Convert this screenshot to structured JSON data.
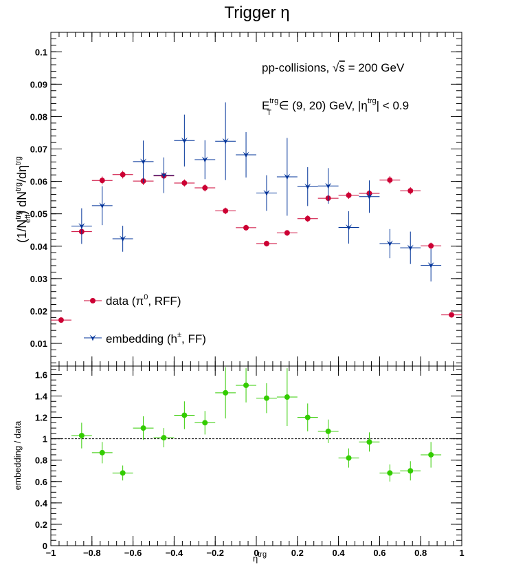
{
  "chart_data": [
    {
      "type": "scatter",
      "title": "Trigger η",
      "ylabel": "(1/N_eff^trg) dN^trg/dη^trg",
      "ylim": [
        0.003,
        0.106
      ],
      "xlim": [
        -1,
        1
      ],
      "xbin_halfwidth": 0.05,
      "y_ticks": [
        0.01,
        0.02,
        0.03,
        0.04,
        0.05,
        0.06,
        0.07,
        0.08,
        0.09,
        0.1
      ],
      "y_tick_labels": [
        "0.01",
        "0.02",
        "0.03",
        "0.04",
        "0.05",
        "0.06",
        "0.07",
        "0.08",
        "0.09",
        "0.1"
      ],
      "annotations": {
        "line1": "pp-collisions, √s = 200 GeV",
        "line2": "E_T^trg ∈ (9, 20) GeV, |η^trg| < 0.9"
      },
      "legend_position": "bottom-left",
      "series": [
        {
          "name": "data (π⁰, RFF)",
          "color": "#cc0033",
          "marker": "circle",
          "x": [
            -0.95,
            -0.85,
            -0.75,
            -0.65,
            -0.55,
            -0.45,
            -0.35,
            -0.25,
            -0.15,
            -0.05,
            0.05,
            0.15,
            0.25,
            0.35,
            0.45,
            0.55,
            0.65,
            0.75,
            0.85,
            0.95
          ],
          "y": [
            0.0172,
            0.0445,
            0.0603,
            0.0621,
            0.0601,
            0.0617,
            0.0595,
            0.058,
            0.0509,
            0.0457,
            0.0408,
            0.0441,
            0.0485,
            0.0548,
            0.0557,
            0.0563,
            0.0604,
            0.0571,
            0.0401,
            0.0188
          ],
          "yerr": [
            0.0008,
            0.001,
            0.0012,
            0.0012,
            0.0012,
            0.0012,
            0.0011,
            0.0011,
            0.001,
            0.0009,
            0.0009,
            0.0009,
            0.001,
            0.0011,
            0.0011,
            0.0011,
            0.0012,
            0.0011,
            0.001,
            0.0008
          ]
        },
        {
          "name": "embedding (h±, FF)",
          "color": "#003399",
          "marker": "star",
          "x": [
            -0.85,
            -0.75,
            -0.65,
            -0.55,
            -0.45,
            -0.35,
            -0.25,
            -0.15,
            -0.05,
            0.05,
            0.15,
            0.25,
            0.35,
            0.45,
            0.55,
            0.65,
            0.75,
            0.85
          ],
          "y": [
            0.0462,
            0.0525,
            0.0423,
            0.0661,
            0.0619,
            0.0726,
            0.0667,
            0.0724,
            0.0682,
            0.0564,
            0.0614,
            0.0584,
            0.0586,
            0.0458,
            0.0553,
            0.0408,
            0.0395,
            0.0341
          ],
          "yerr": [
            0.0055,
            0.006,
            0.004,
            0.0065,
            0.0055,
            0.008,
            0.006,
            0.012,
            0.007,
            0.0055,
            0.012,
            0.006,
            0.0055,
            0.005,
            0.005,
            0.0045,
            0.005,
            0.005
          ]
        }
      ]
    },
    {
      "type": "scatter",
      "xlabel": "η^trg",
      "ylabel": "embedding / data",
      "ylim": [
        0,
        1.68
      ],
      "xlim": [
        -1,
        1
      ],
      "reference_line": 1,
      "y_ticks": [
        0,
        0.2,
        0.4,
        0.6,
        0.8,
        1,
        1.2,
        1.4,
        1.6
      ],
      "y_tick_labels": [
        "0",
        "0.2",
        "0.4",
        "0.6",
        "0.8",
        "1",
        "1.2",
        "1.4",
        "1.6"
      ],
      "x_ticks": [
        -1,
        -0.8,
        -0.6,
        -0.4,
        -0.2,
        0,
        0.2,
        0.4,
        0.6,
        0.8,
        1
      ],
      "x_tick_labels": [
        "−1",
        "−0.8",
        "−0.6",
        "−0.4",
        "−0.2",
        "0",
        "0.2",
        "0.4",
        "0.6",
        "0.8",
        "1"
      ],
      "series": [
        {
          "color": "#33cc00",
          "marker": "circle",
          "x": [
            -0.85,
            -0.75,
            -0.65,
            -0.55,
            -0.45,
            -0.35,
            -0.25,
            -0.15,
            -0.05,
            0.05,
            0.15,
            0.25,
            0.35,
            0.45,
            0.55,
            0.65,
            0.75,
            0.85
          ],
          "y": [
            1.03,
            0.87,
            0.68,
            1.1,
            1.01,
            1.22,
            1.15,
            1.43,
            1.5,
            1.38,
            1.39,
            1.2,
            1.07,
            0.82,
            0.97,
            0.68,
            0.7,
            0.85
          ],
          "yerr": [
            0.12,
            0.1,
            0.07,
            0.11,
            0.09,
            0.13,
            0.11,
            0.24,
            0.16,
            0.14,
            0.27,
            0.13,
            0.11,
            0.09,
            0.09,
            0.08,
            0.09,
            0.12
          ]
        }
      ]
    }
  ]
}
